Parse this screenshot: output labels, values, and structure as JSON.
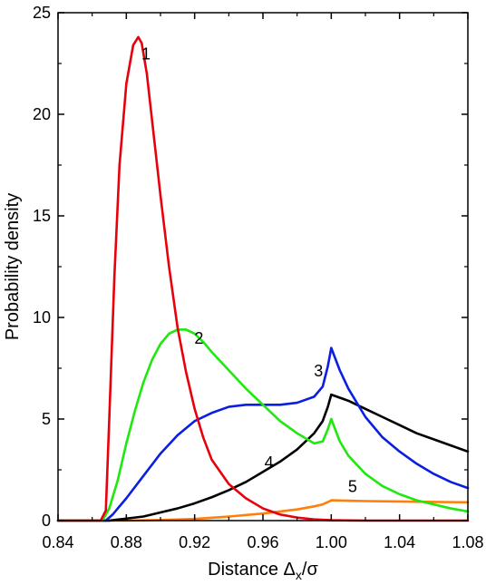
{
  "chart_data": {
    "type": "line",
    "title": "",
    "xlabel": "Distance Δx/σ",
    "xlabel_main": "Distance Δ",
    "xlabel_sub": "x",
    "xlabel_tail": "/σ",
    "ylabel": "Probability density",
    "xlim": [
      0.84,
      1.08
    ],
    "ylim": [
      0,
      25
    ],
    "xticks": [
      0.84,
      0.88,
      0.92,
      0.96,
      1.0,
      1.04,
      1.08
    ],
    "xtick_labels": [
      "0.84",
      "0.88",
      "0.92",
      "0.96",
      "1.00",
      "1.04",
      "1.08"
    ],
    "yticks": [
      0,
      5,
      10,
      15,
      20,
      25
    ],
    "ytick_labels": [
      "0",
      "5",
      "10",
      "15",
      "20",
      "25"
    ],
    "grid": false,
    "legend": "none",
    "series": [
      {
        "label": "1",
        "label_pos": [
          0.8915,
          22.7
        ],
        "color": "#e8000b",
        "x": [
          0.84,
          0.865,
          0.868,
          0.87,
          0.873,
          0.876,
          0.88,
          0.884,
          0.887,
          0.889,
          0.892,
          0.896,
          0.9,
          0.905,
          0.91,
          0.915,
          0.92,
          0.925,
          0.93,
          0.94,
          0.95,
          0.96,
          0.97,
          0.98,
          0.99,
          1.0,
          1.01,
          1.02,
          1.04,
          1.06,
          1.08
        ],
        "y": [
          0,
          0,
          0.5,
          5.0,
          12.0,
          17.5,
          21.5,
          23.4,
          23.8,
          23.5,
          22.0,
          19.0,
          16.0,
          12.5,
          9.5,
          7.3,
          5.5,
          4.1,
          3.0,
          1.8,
          1.1,
          0.6,
          0.3,
          0.15,
          0.06,
          0.02,
          0.01,
          0.0,
          0.0,
          0.0,
          0.0
        ]
      },
      {
        "label": "2",
        "label_pos": [
          0.9225,
          8.7
        ],
        "color": "#1fe80f",
        "x": [
          0.84,
          0.866,
          0.87,
          0.875,
          0.88,
          0.885,
          0.89,
          0.895,
          0.9,
          0.905,
          0.91,
          0.915,
          0.92,
          0.925,
          0.93,
          0.94,
          0.95,
          0.96,
          0.97,
          0.98,
          0.99,
          0.995,
          0.998,
          1.0,
          1.005,
          1.01,
          1.02,
          1.03,
          1.04,
          1.05,
          1.06,
          1.07,
          1.08
        ],
        "y": [
          0,
          0,
          0.6,
          2.0,
          3.8,
          5.4,
          6.8,
          7.9,
          8.7,
          9.2,
          9.4,
          9.4,
          9.2,
          8.8,
          8.3,
          7.4,
          6.5,
          5.7,
          4.9,
          4.3,
          3.8,
          3.9,
          4.5,
          5.0,
          3.9,
          3.2,
          2.3,
          1.7,
          1.3,
          1.0,
          0.8,
          0.6,
          0.45
        ]
      },
      {
        "label": "3",
        "label_pos": [
          0.9925,
          7.1
        ],
        "color": "#0a1fe0",
        "x": [
          0.84,
          0.868,
          0.872,
          0.88,
          0.89,
          0.9,
          0.91,
          0.92,
          0.93,
          0.94,
          0.95,
          0.96,
          0.97,
          0.98,
          0.99,
          0.995,
          0.998,
          1.0,
          1.005,
          1.01,
          1.02,
          1.03,
          1.04,
          1.05,
          1.06,
          1.07,
          1.08
        ],
        "y": [
          0,
          0,
          0.3,
          1.1,
          2.2,
          3.3,
          4.2,
          4.9,
          5.3,
          5.6,
          5.7,
          5.7,
          5.7,
          5.8,
          6.1,
          6.6,
          7.6,
          8.5,
          7.4,
          6.5,
          5.1,
          4.1,
          3.4,
          2.8,
          2.3,
          1.9,
          1.6
        ]
      },
      {
        "label": "4",
        "label_pos": [
          0.9635,
          2.6
        ],
        "color": "#000000",
        "x": [
          0.84,
          0.87,
          0.88,
          0.89,
          0.9,
          0.91,
          0.92,
          0.93,
          0.94,
          0.95,
          0.96,
          0.97,
          0.98,
          0.99,
          0.995,
          0.998,
          1.0,
          1.01,
          1.02,
          1.03,
          1.04,
          1.05,
          1.06,
          1.07,
          1.08
        ],
        "y": [
          0,
          0,
          0.1,
          0.2,
          0.4,
          0.6,
          0.85,
          1.15,
          1.5,
          1.9,
          2.4,
          2.9,
          3.5,
          4.3,
          4.9,
          5.6,
          6.2,
          5.9,
          5.5,
          5.1,
          4.7,
          4.3,
          4.0,
          3.7,
          3.4
        ]
      },
      {
        "label": "5",
        "label_pos": [
          1.0125,
          1.4
        ],
        "color": "#ff7f0a",
        "x": [
          0.84,
          0.88,
          0.9,
          0.92,
          0.94,
          0.96,
          0.98,
          0.99,
          0.995,
          0.999,
          1.0,
          1.01,
          1.02,
          1.04,
          1.06,
          1.08
        ],
        "y": [
          0,
          0,
          0.03,
          0.08,
          0.2,
          0.35,
          0.55,
          0.7,
          0.8,
          0.95,
          1.0,
          0.98,
          0.96,
          0.94,
          0.92,
          0.9
        ]
      }
    ]
  }
}
